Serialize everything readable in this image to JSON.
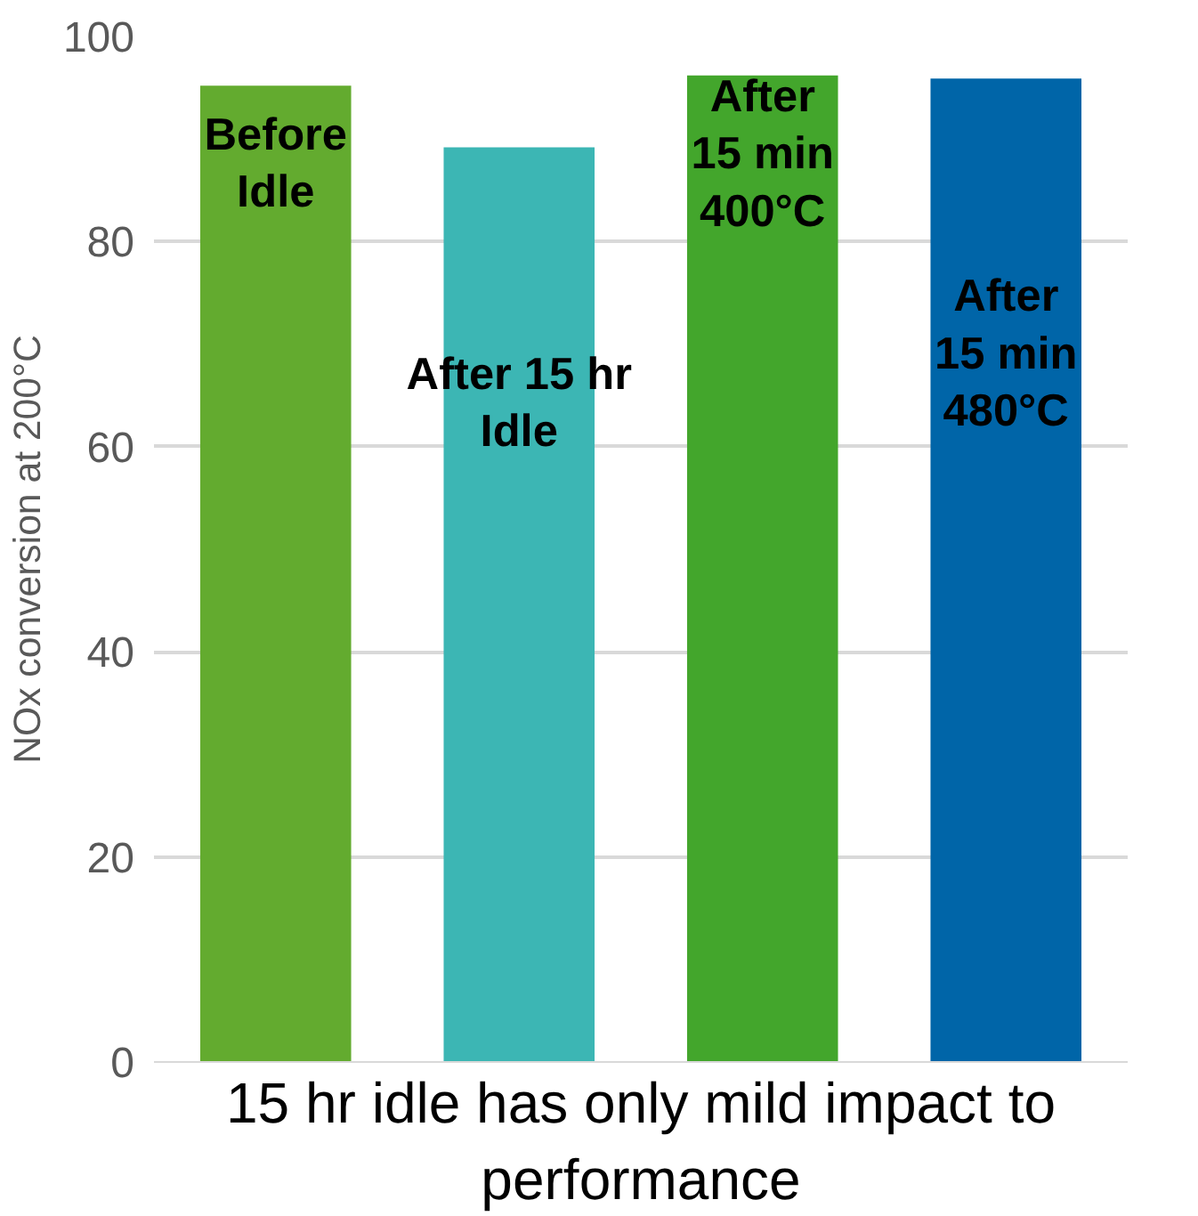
{
  "chart_data": {
    "type": "bar",
    "categories": [
      "Before\nIdle",
      "After 15 hr\nIdle",
      "After\n15 min\n400°C",
      "After\n15 min\n480°C"
    ],
    "values": [
      95.2,
      89.2,
      96.2,
      95.9
    ],
    "colors": [
      "#63ab2f",
      "#3cb6b4",
      "#43a62c",
      "#0065a8"
    ],
    "ylabel": "NOx conversion at 200°C",
    "xlabel": "15 hr idle has only mild impact to performance",
    "ylim": [
      0,
      100
    ],
    "yticks": [
      0,
      20,
      40,
      60,
      80,
      100
    ],
    "grid": "y"
  }
}
